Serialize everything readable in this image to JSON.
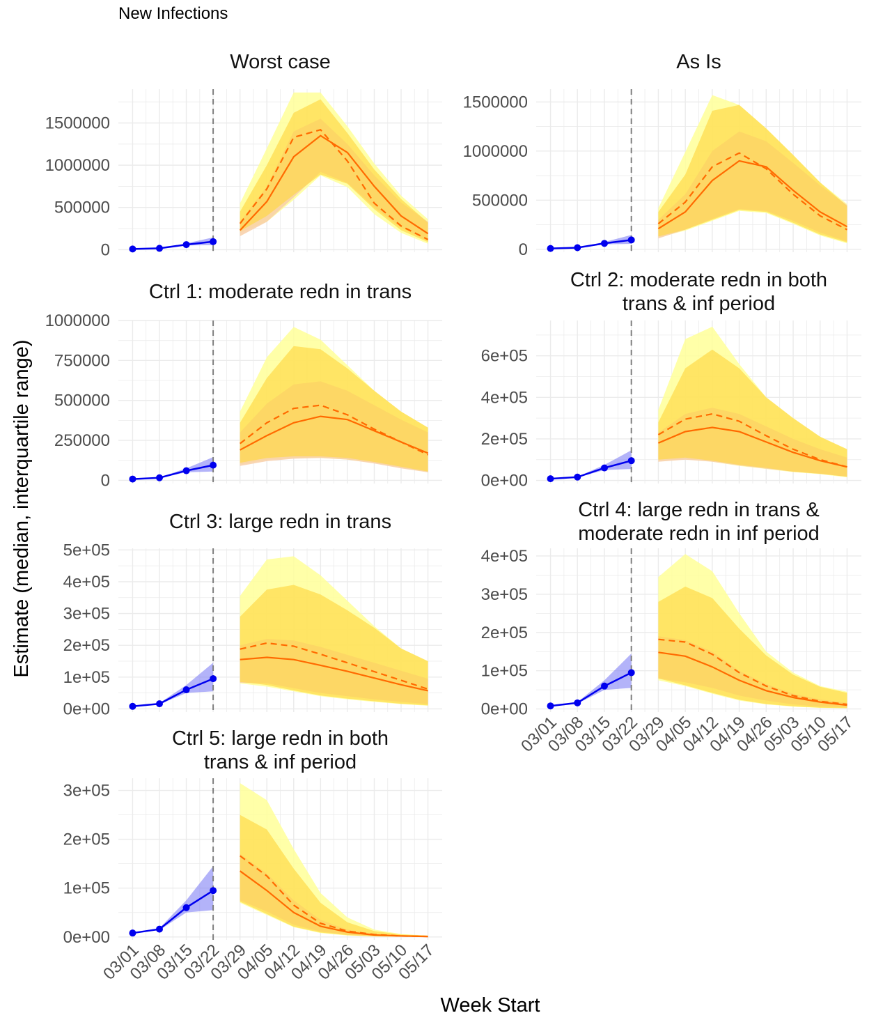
{
  "figure": {
    "title": "New Infections",
    "xlabel": "Week Start",
    "ylabel": "Estimate (median, interquartile range)"
  },
  "colors": {
    "observed": "#0000EE",
    "observed_band": "#8080F5",
    "projection_line": "#FF6A00",
    "outer_band": "#FFFF99",
    "inner_band": "#FFD740",
    "salmon_band": "#F8CFA8",
    "divider": "#7F7F7F",
    "grid": "#EBEBEB"
  },
  "chart_data": [
    {
      "type": "line",
      "title": [
        "Worst case"
      ],
      "x_ticks": [
        "03/01",
        "03/08",
        "03/15",
        "03/22",
        "03/29",
        "04/05",
        "04/12",
        "04/19",
        "04/26",
        "05/03",
        "05/10",
        "05/17"
      ],
      "yticks": [
        0,
        500000,
        1000000,
        1500000
      ],
      "ytick_labels": [
        "0",
        "500000",
        "1000000",
        "1500000"
      ],
      "ylim": [
        -30000,
        1900000
      ],
      "observed": {
        "x": [
          "03/01",
          "03/08",
          "03/15",
          "03/22"
        ],
        "median": [
          8000,
          16000,
          60000,
          95000
        ],
        "band_low": [
          7000,
          14000,
          50000,
          55000
        ],
        "band_high": [
          9000,
          18000,
          75000,
          145000
        ]
      },
      "projection_x": [
        "03/29",
        "04/05",
        "04/12",
        "04/19",
        "04/26",
        "05/03",
        "05/10",
        "05/17"
      ],
      "solid_median": [
        230000,
        570000,
        1100000,
        1350000,
        1150000,
        750000,
        400000,
        190000
      ],
      "dashed_median": [
        310000,
        720000,
        1330000,
        1420000,
        1050000,
        550000,
        280000,
        120000
      ],
      "outer_band_low": [
        200000,
        330000,
        590000,
        880000,
        740000,
        420000,
        200000,
        70000
      ],
      "outer_band_high": [
        550000,
        1200000,
        1860000,
        1860000,
        1460000,
        1020000,
        640000,
        360000
      ],
      "inner_band_low": [
        220000,
        400000,
        650000,
        890000,
        780000,
        480000,
        230000,
        90000
      ],
      "inner_band_high": [
        450000,
        1000000,
        1620000,
        1780000,
        1380000,
        950000,
        600000,
        320000
      ],
      "salmon_band_low": [
        160000,
        330000,
        620000,
        920000,
        790000,
        500000,
        260000,
        100000
      ],
      "salmon_band_high": [
        330000,
        750000,
        1400000,
        1550000,
        1250000,
        880000,
        560000,
        330000
      ]
    },
    {
      "type": "line",
      "title": [
        "As Is"
      ],
      "x_ticks": [
        "03/01",
        "03/08",
        "03/15",
        "03/22",
        "03/29",
        "04/05",
        "04/12",
        "04/19",
        "04/26",
        "05/03",
        "05/10",
        "05/17"
      ],
      "yticks": [
        0,
        500000,
        1000000,
        1500000
      ],
      "ytick_labels": [
        "0",
        "500000",
        "1000000",
        "1500000"
      ],
      "ylim": [
        -30000,
        1630000
      ],
      "observed": {
        "x": [
          "03/01",
          "03/08",
          "03/15",
          "03/22"
        ],
        "median": [
          8000,
          16000,
          60000,
          95000
        ],
        "band_low": [
          7000,
          14000,
          50000,
          55000
        ],
        "band_high": [
          9000,
          18000,
          75000,
          145000
        ]
      },
      "projection_x": [
        "03/29",
        "04/05",
        "04/12",
        "04/19",
        "04/26",
        "05/03",
        "05/10",
        "05/17"
      ],
      "solid_median": [
        210000,
        380000,
        700000,
        900000,
        840000,
        600000,
        380000,
        230000
      ],
      "dashed_median": [
        260000,
        480000,
        840000,
        980000,
        820000,
        560000,
        340000,
        200000
      ],
      "outer_band_low": [
        120000,
        190000,
        290000,
        390000,
        370000,
        260000,
        140000,
        60000
      ],
      "outer_band_high": [
        420000,
        990000,
        1570000,
        1470000,
        1230000,
        960000,
        680000,
        460000
      ],
      "inner_band_low": [
        130000,
        200000,
        300000,
        400000,
        380000,
        270000,
        150000,
        70000
      ],
      "inner_band_high": [
        380000,
        760000,
        1410000,
        1470000,
        1230000,
        960000,
        680000,
        440000
      ],
      "salmon_band_low": [
        110000,
        200000,
        310000,
        410000,
        390000,
        290000,
        170000,
        80000
      ],
      "salmon_band_high": [
        300000,
        560000,
        1000000,
        1200000,
        1100000,
        880000,
        650000,
        450000
      ]
    },
    {
      "type": "line",
      "title": [
        "Ctrl 1: moderate redn in trans"
      ],
      "x_ticks": [
        "03/01",
        "03/08",
        "03/15",
        "03/22",
        "03/29",
        "04/05",
        "04/12",
        "04/19",
        "04/26",
        "05/03",
        "05/10",
        "05/17"
      ],
      "yticks": [
        0,
        250000,
        500000,
        750000,
        1000000
      ],
      "ytick_labels": [
        "0",
        "250000",
        "500000",
        "750000",
        "1000000"
      ],
      "ylim": [
        -20000,
        1000000
      ],
      "observed": {
        "x": [
          "03/01",
          "03/08",
          "03/15",
          "03/22"
        ],
        "median": [
          8000,
          16000,
          60000,
          95000
        ],
        "band_low": [
          7000,
          14000,
          50000,
          55000
        ],
        "band_high": [
          9000,
          18000,
          75000,
          145000
        ]
      },
      "projection_x": [
        "03/29",
        "04/05",
        "04/12",
        "04/19",
        "04/26",
        "05/03",
        "05/10",
        "05/17"
      ],
      "solid_median": [
        190000,
        280000,
        360000,
        400000,
        380000,
        310000,
        240000,
        170000
      ],
      "dashed_median": [
        230000,
        360000,
        450000,
        470000,
        410000,
        320000,
        240000,
        160000
      ],
      "outer_band_low": [
        100000,
        130000,
        140000,
        140000,
        130000,
        110000,
        80000,
        50000
      ],
      "outer_band_high": [
        430000,
        770000,
        960000,
        880000,
        720000,
        560000,
        430000,
        330000
      ],
      "inner_band_low": [
        110000,
        140000,
        150000,
        150000,
        140000,
        115000,
        85000,
        55000
      ],
      "inner_band_high": [
        360000,
        640000,
        840000,
        820000,
        700000,
        560000,
        430000,
        330000
      ],
      "salmon_band_low": [
        90000,
        120000,
        135000,
        140000,
        130000,
        105000,
        75000,
        50000
      ],
      "salmon_band_high": [
        300000,
        480000,
        600000,
        620000,
        560000,
        470000,
        380000,
        300000
      ]
    },
    {
      "type": "line",
      "title": [
        "Ctrl 2: moderate redn in both",
        "trans & inf period"
      ],
      "x_ticks": [
        "03/01",
        "03/08",
        "03/15",
        "03/22",
        "03/29",
        "04/05",
        "04/12",
        "04/19",
        "04/26",
        "05/03",
        "05/10",
        "05/17"
      ],
      "yticks": [
        0,
        200000,
        400000,
        600000
      ],
      "ytick_labels": [
        "0e+00",
        "2e+05",
        "4e+05",
        "6e+05"
      ],
      "ylim": [
        -15000,
        770000
      ],
      "observed": {
        "x": [
          "03/01",
          "03/08",
          "03/15",
          "03/22"
        ],
        "median": [
          8000,
          16000,
          60000,
          95000
        ],
        "band_low": [
          7000,
          14000,
          50000,
          55000
        ],
        "band_high": [
          9000,
          18000,
          75000,
          145000
        ]
      },
      "projection_x": [
        "03/29",
        "04/05",
        "04/12",
        "04/19",
        "04/26",
        "05/03",
        "05/10",
        "05/17"
      ],
      "solid_median": [
        180000,
        235000,
        255000,
        235000,
        185000,
        135000,
        95000,
        65000
      ],
      "dashed_median": [
        220000,
        295000,
        320000,
        285000,
        215000,
        150000,
        100000,
        65000
      ],
      "outer_band_low": [
        95000,
        105000,
        90000,
        70000,
        55000,
        40000,
        30000,
        15000
      ],
      "outer_band_high": [
        340000,
        680000,
        740000,
        560000,
        400000,
        300000,
        210000,
        150000
      ],
      "inner_band_low": [
        100000,
        110000,
        95000,
        75000,
        60000,
        42000,
        32000,
        18000
      ],
      "inner_band_high": [
        280000,
        540000,
        630000,
        540000,
        400000,
        300000,
        210000,
        150000
      ],
      "salmon_band_low": [
        90000,
        100000,
        90000,
        72000,
        56000,
        42000,
        32000,
        18000
      ],
      "salmon_band_high": [
        230000,
        320000,
        350000,
        320000,
        260000,
        200000,
        150000,
        110000
      ]
    },
    {
      "type": "line",
      "title": [
        "Ctrl 3: large redn in trans"
      ],
      "x_ticks": [
        "03/01",
        "03/08",
        "03/15",
        "03/22",
        "03/29",
        "04/05",
        "04/12",
        "04/19",
        "04/26",
        "05/03",
        "05/10",
        "05/17"
      ],
      "yticks": [
        0,
        100000,
        200000,
        300000,
        400000,
        500000
      ],
      "ytick_labels": [
        "0e+00",
        "1e+05",
        "2e+05",
        "3e+05",
        "4e+05",
        "5e+05"
      ],
      "ylim": [
        -10000,
        505000
      ],
      "observed": {
        "x": [
          "03/01",
          "03/08",
          "03/15",
          "03/22"
        ],
        "median": [
          8000,
          16000,
          60000,
          95000
        ],
        "band_low": [
          7000,
          14000,
          50000,
          55000
        ],
        "band_high": [
          9000,
          18000,
          75000,
          145000
        ]
      },
      "projection_x": [
        "03/29",
        "04/05",
        "04/12",
        "04/19",
        "04/26",
        "05/03",
        "05/10",
        "05/17"
      ],
      "solid_median": [
        155000,
        162000,
        155000,
        137000,
        118000,
        97000,
        76000,
        57000
      ],
      "dashed_median": [
        188000,
        207000,
        197000,
        172000,
        145000,
        117000,
        90000,
        62000
      ],
      "outer_band_low": [
        80000,
        70000,
        55000,
        40000,
        30000,
        22000,
        15000,
        10000
      ],
      "outer_band_high": [
        355000,
        470000,
        480000,
        420000,
        340000,
        260000,
        190000,
        150000
      ],
      "inner_band_low": [
        85000,
        75000,
        58000,
        42000,
        32000,
        24000,
        16000,
        11000
      ],
      "inner_band_high": [
        290000,
        375000,
        390000,
        360000,
        310000,
        255000,
        190000,
        150000
      ],
      "salmon_band_low": [
        82000,
        80000,
        65000,
        50000,
        40000,
        30000,
        22000,
        15000
      ],
      "salmon_band_high": [
        200000,
        220000,
        215000,
        195000,
        170000,
        145000,
        120000,
        95000
      ]
    },
    {
      "type": "line",
      "title": [
        "Ctrl 4: large redn in trans &",
        "moderate redn in inf period"
      ],
      "x_ticks": [
        "03/01",
        "03/08",
        "03/15",
        "03/22",
        "03/29",
        "04/05",
        "04/12",
        "04/19",
        "04/26",
        "05/03",
        "05/10",
        "05/17"
      ],
      "yticks": [
        0,
        100000,
        200000,
        300000,
        400000
      ],
      "ytick_labels": [
        "0e+00",
        "1e+05",
        "2e+05",
        "3e+05",
        "4e+05"
      ],
      "ylim": [
        -8000,
        420000
      ],
      "observed": {
        "x": [
          "03/01",
          "03/08",
          "03/15",
          "03/22"
        ],
        "median": [
          8000,
          16000,
          60000,
          95000
        ],
        "band_low": [
          7000,
          14000,
          50000,
          55000
        ],
        "band_high": [
          9000,
          18000,
          75000,
          145000
        ]
      },
      "projection_x": [
        "03/29",
        "04/05",
        "04/12",
        "04/19",
        "04/26",
        "05/03",
        "05/10",
        "05/17"
      ],
      "solid_median": [
        148000,
        138000,
        110000,
        75000,
        48000,
        30000,
        18000,
        10000
      ],
      "dashed_median": [
        182000,
        175000,
        143000,
        95000,
        60000,
        35000,
        20000,
        12000
      ],
      "outer_band_low": [
        75000,
        60000,
        40000,
        22000,
        12000,
        6000,
        3000,
        2000
      ],
      "outer_band_high": [
        345000,
        405000,
        360000,
        250000,
        150000,
        95000,
        60000,
        45000
      ],
      "inner_band_low": [
        80000,
        62000,
        42000,
        24000,
        13000,
        7000,
        3500,
        2000
      ],
      "inner_band_high": [
        280000,
        320000,
        290000,
        210000,
        140000,
        90000,
        58000,
        42000
      ],
      "salmon_band_low": [
        80000,
        70000,
        55000,
        35000,
        22000,
        12000,
        6000,
        4000
      ],
      "salmon_band_high": [
        190000,
        180000,
        150000,
        100000,
        65000,
        40000,
        25000,
        16000
      ]
    },
    {
      "type": "line",
      "title": [
        "Ctrl 5: large redn in both",
        "trans & inf period"
      ],
      "x_ticks": [
        "03/01",
        "03/08",
        "03/15",
        "03/22",
        "03/29",
        "04/05",
        "04/12",
        "04/19",
        "04/26",
        "05/03",
        "05/10",
        "05/17"
      ],
      "yticks": [
        0,
        100000,
        200000,
        300000
      ],
      "ytick_labels": [
        "0e+00",
        "1e+05",
        "2e+05",
        "3e+05"
      ],
      "ylim": [
        -6000,
        325000
      ],
      "observed": {
        "x": [
          "03/01",
          "03/08",
          "03/15",
          "03/22"
        ],
        "median": [
          8000,
          16000,
          60000,
          95000
        ],
        "band_low": [
          7000,
          14000,
          50000,
          55000
        ],
        "band_high": [
          9000,
          18000,
          75000,
          145000
        ]
      },
      "projection_x": [
        "03/29",
        "04/05",
        "04/12",
        "04/19",
        "04/26",
        "05/03",
        "05/10",
        "05/17"
      ],
      "solid_median": [
        135000,
        95000,
        50000,
        22000,
        10000,
        4000,
        2000,
        1000
      ],
      "dashed_median": [
        166000,
        125000,
        65000,
        28000,
        12000,
        5000,
        2000,
        1000
      ],
      "outer_band_low": [
        70000,
        45000,
        20000,
        8000,
        3000,
        1000,
        500,
        200
      ],
      "outer_band_high": [
        315000,
        280000,
        180000,
        90000,
        40000,
        15000,
        6000,
        3000
      ],
      "inner_band_low": [
        72000,
        47000,
        21000,
        9000,
        3500,
        1200,
        600,
        250
      ],
      "inner_band_high": [
        250000,
        220000,
        140000,
        70000,
        30000,
        12000,
        5000,
        2500
      ],
      "salmon_band_low": [
        75000,
        52000,
        25000,
        11000,
        4500,
        1800,
        800,
        300
      ],
      "salmon_band_high": [
        170000,
        130000,
        75000,
        35000,
        15000,
        6000,
        2500,
        1200
      ]
    }
  ]
}
